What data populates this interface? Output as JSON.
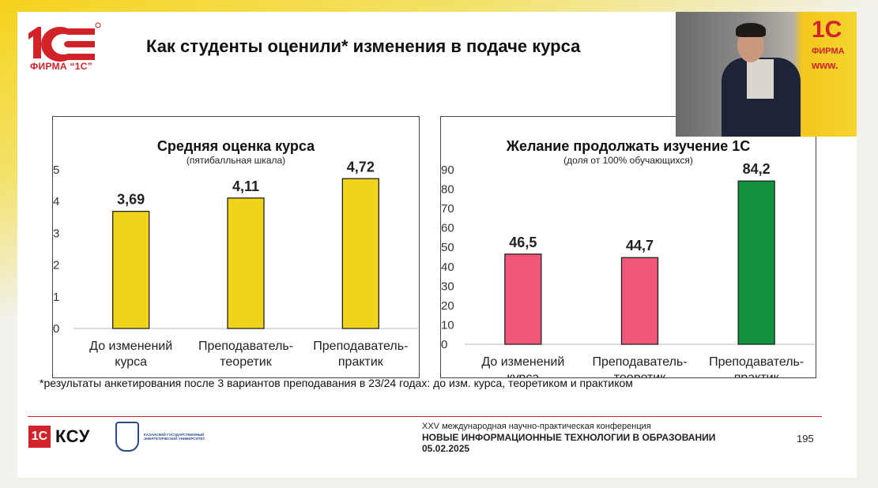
{
  "header": {
    "logo_text": "ФИРМА “1С”",
    "title": "Как студенты оценили* изменения в подаче курса"
  },
  "chart_data": [
    {
      "type": "bar",
      "title": "Средняя оценка курса",
      "subtitle": "(пятибалльная шкала)",
      "categories": [
        [
          "До изменений",
          "курса"
        ],
        [
          "Преподаватель-",
          "теоретик"
        ],
        [
          "Преподаватель-",
          "практик"
        ]
      ],
      "values": [
        3.69,
        4.11,
        4.72
      ],
      "value_labels": [
        "3,69",
        "4,11",
        "4,72"
      ],
      "ylim": [
        0,
        5
      ],
      "yticks": [
        0,
        1,
        2,
        3,
        4,
        5
      ],
      "bar_colors": [
        "#f0d31a",
        "#f0d31a",
        "#f0d31a"
      ],
      "grid": false
    },
    {
      "type": "bar",
      "title": "Желание продолжать изучение 1С",
      "subtitle": "(доля от 100% обучающихся)",
      "categories": [
        [
          "До изменений",
          "курса"
        ],
        [
          "Преподаватель-",
          "теоретик"
        ],
        [
          "Преподаватель-",
          "практик"
        ]
      ],
      "values": [
        46.5,
        44.7,
        84.2
      ],
      "value_labels": [
        "46,5",
        "44,7",
        "84,2"
      ],
      "ylim": [
        0,
        90
      ],
      "yticks": [
        0,
        10,
        20,
        30,
        40,
        50,
        60,
        70,
        80,
        90
      ],
      "bar_colors": [
        "#f0587a",
        "#f0587a",
        "#139340"
      ],
      "grid": false
    }
  ],
  "footnote": "*результаты анкетирования после 3 вариантов преподавания в 23/24 годах: до изм. курса, теоретиком и практиком",
  "footer": {
    "ksu_box": "1С",
    "ksu_text": "КСУ",
    "university": "КАЗАНСКИЙ ГОСУДАРСТВЕННЫЙ ЭНЕРГЕТИЧЕСКИЙ УНИВЕРСИТЕТ",
    "conf_line1": "XXV международная научно-практическая конференция",
    "conf_line2": "НОВЫЕ ИНФОРМАЦИОННЫЕ ТЕХНОЛОГИИ В ОБРАЗОВАНИИ",
    "conf_line3": "05.02.2025",
    "page": "195"
  },
  "camera": {
    "brand": "1С",
    "brand_line2": "ФИРМА",
    "brand_line3": "www."
  },
  "colors": {
    "brand_red": "#d2222a",
    "yellow_bar": "#f0d31a",
    "pink_bar": "#f0587a",
    "green_bar": "#139340"
  }
}
